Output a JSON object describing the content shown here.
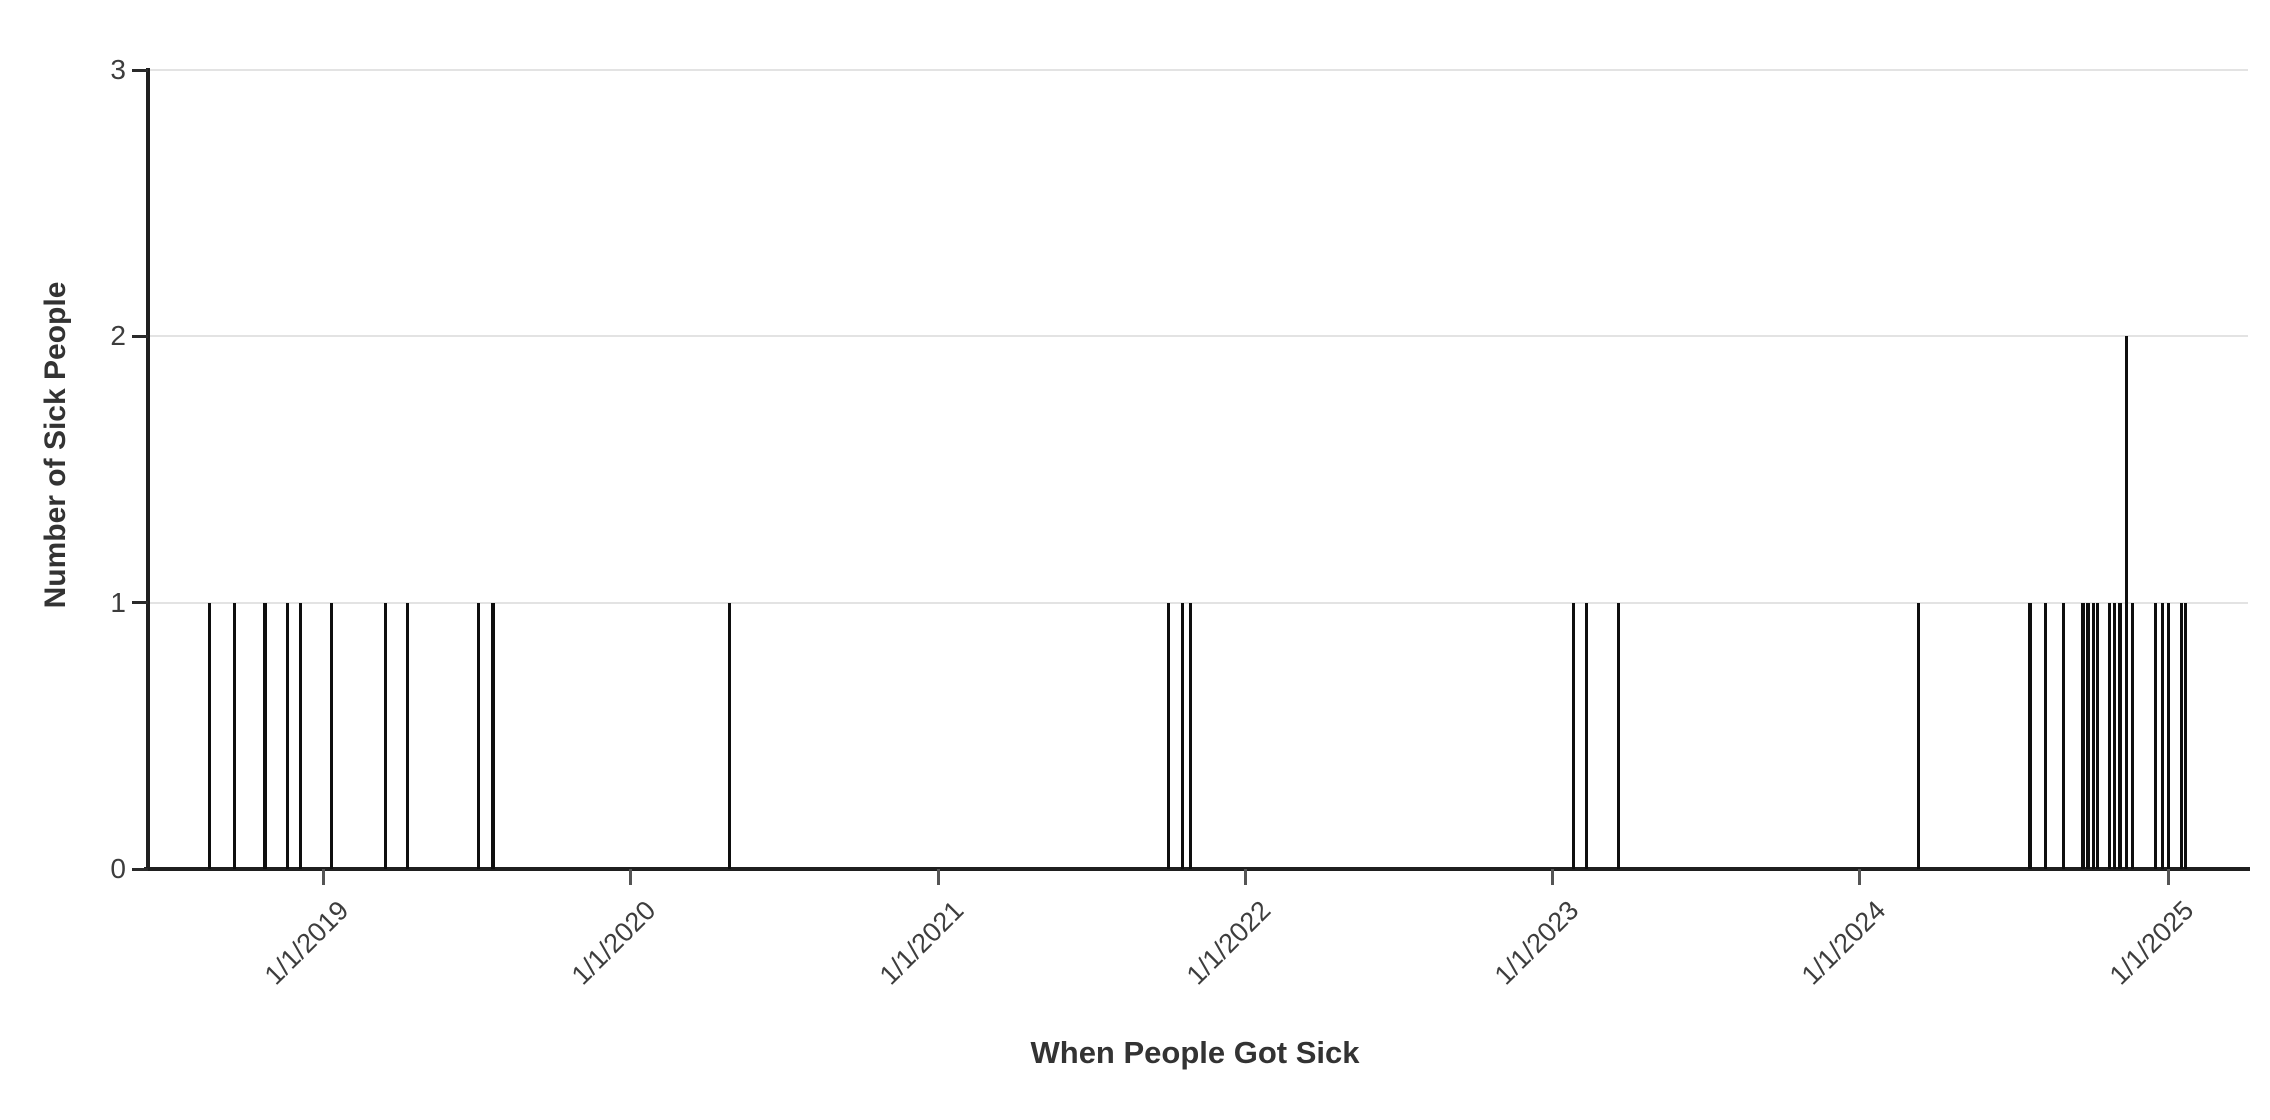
{
  "chart_data": {
    "type": "bar",
    "subtype": "epi-curve-date-histogram",
    "title": "",
    "xlabel": "When People Got Sick",
    "ylabel": "Number of Sick People",
    "y_ticks": [
      0,
      1,
      2,
      3
    ],
    "ylim": [
      0,
      3
    ],
    "grid": "horizontal-only",
    "legend": "none",
    "x_ticks": [
      {
        "date": "2019-01-01",
        "label": "1/1/2019"
      },
      {
        "date": "2020-01-01",
        "label": "1/1/2020"
      },
      {
        "date": "2021-01-01",
        "label": "1/1/2021"
      },
      {
        "date": "2022-01-01",
        "label": "1/1/2022"
      },
      {
        "date": "2023-01-01",
        "label": "1/1/2023"
      },
      {
        "date": "2024-01-01",
        "label": "1/1/2024"
      },
      {
        "date": "2025-01-01",
        "label": "1/1/2025"
      }
    ],
    "xlim_dates": [
      "2018-06-07",
      "2025-04-06"
    ],
    "points": [
      {
        "date": "2018-08-19",
        "count": 1
      },
      {
        "date": "2018-09-18",
        "count": 1
      },
      {
        "date": "2018-10-24",
        "count": 1
      },
      {
        "date": "2018-11-20",
        "count": 1
      },
      {
        "date": "2018-12-05",
        "count": 1
      },
      {
        "date": "2019-01-11",
        "count": 1
      },
      {
        "date": "2019-03-16",
        "count": 1
      },
      {
        "date": "2019-04-11",
        "count": 1
      },
      {
        "date": "2019-07-05",
        "count": 1
      },
      {
        "date": "2019-07-22",
        "count": 1
      },
      {
        "date": "2020-04-28",
        "count": 1
      },
      {
        "date": "2021-10-01",
        "count": 1
      },
      {
        "date": "2021-10-18",
        "count": 1
      },
      {
        "date": "2021-10-28",
        "count": 1
      },
      {
        "date": "2023-01-26",
        "count": 1
      },
      {
        "date": "2023-02-10",
        "count": 1
      },
      {
        "date": "2023-03-20",
        "count": 1
      },
      {
        "date": "2024-03-11",
        "count": 1
      },
      {
        "date": "2024-07-21",
        "count": 1
      },
      {
        "date": "2024-08-08",
        "count": 1
      },
      {
        "date": "2024-08-30",
        "count": 1
      },
      {
        "date": "2024-09-22",
        "count": 1
      },
      {
        "date": "2024-09-28",
        "count": 1
      },
      {
        "date": "2024-10-04",
        "count": 1
      },
      {
        "date": "2024-10-09",
        "count": 1
      },
      {
        "date": "2024-10-23",
        "count": 1
      },
      {
        "date": "2024-10-29",
        "count": 1
      },
      {
        "date": "2024-11-05",
        "count": 1
      },
      {
        "date": "2024-11-13",
        "count": 2
      },
      {
        "date": "2024-11-20",
        "count": 1
      },
      {
        "date": "2024-12-17",
        "count": 1
      },
      {
        "date": "2024-12-25",
        "count": 1
      },
      {
        "date": "2025-01-02",
        "count": 1
      },
      {
        "date": "2025-01-17",
        "count": 1
      },
      {
        "date": "2025-01-22",
        "count": 1
      }
    ],
    "colors": {
      "bar": "#0e0e0e",
      "axis": "#1f1f1f",
      "gridline": "#e3e3e3",
      "tick_label_text": "#3d3d3d",
      "axis_title_text": "#333333",
      "x_tick_mark": "#555555",
      "background": "#ffffff"
    }
  }
}
